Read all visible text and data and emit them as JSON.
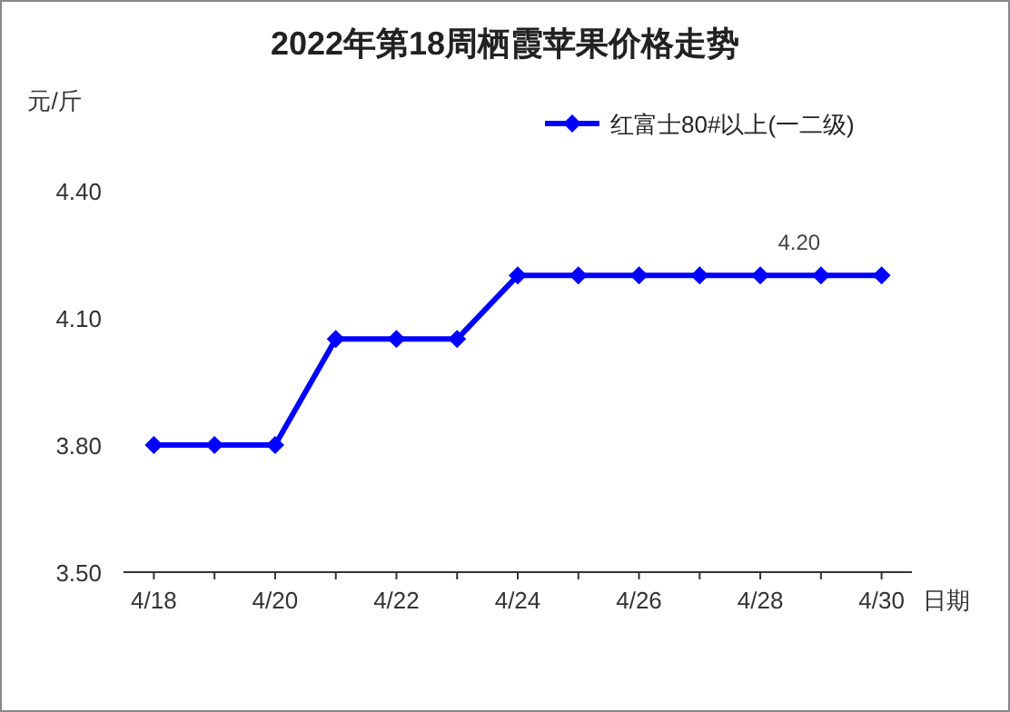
{
  "chart_data": {
    "type": "line",
    "title": "2022年第18周栖霞苹果价格走势",
    "ylabel": "元/斤",
    "xlabel": "日期",
    "categories": [
      "4/18",
      null,
      "4/20",
      null,
      "4/22",
      null,
      "4/24",
      null,
      "4/26",
      null,
      "4/28",
      null,
      "4/30"
    ],
    "series": [
      {
        "name": "红富士80#以上(一二级)",
        "color": "#0000ff",
        "values": [
          3.8,
          3.8,
          3.8,
          4.05,
          4.05,
          4.05,
          4.2,
          4.2,
          4.2,
          4.2,
          4.2,
          4.2,
          4.2
        ],
        "value_labels": [
          null,
          null,
          null,
          null,
          null,
          null,
          null,
          null,
          null,
          null,
          null,
          "4.20",
          null
        ]
      }
    ],
    "ylim": [
      3.5,
      4.4
    ],
    "yticks": [
      {
        "value": 3.5,
        "label": "3.50"
      },
      {
        "value": 3.8,
        "label": "3.80"
      },
      {
        "value": 4.1,
        "label": "4.10"
      },
      {
        "value": 4.4,
        "label": "4.40"
      }
    ],
    "marker": "diamond",
    "legend": "top right",
    "grid": false
  }
}
